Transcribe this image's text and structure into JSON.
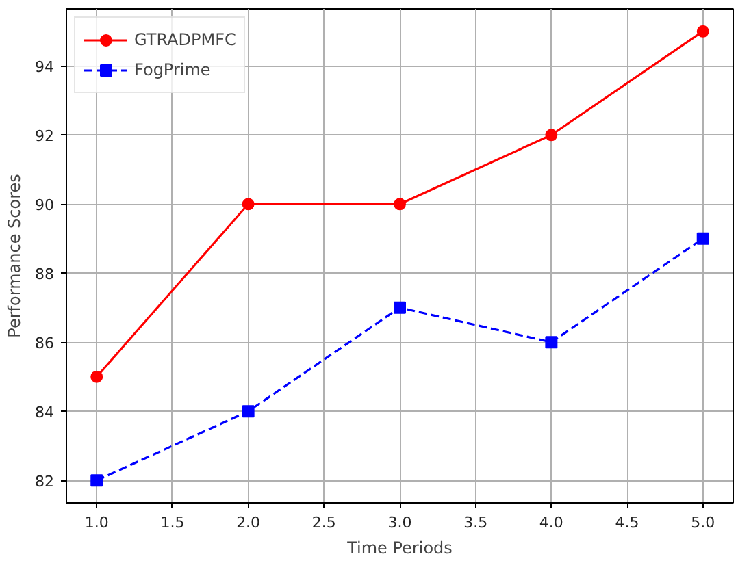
{
  "chart_data": {
    "type": "line",
    "xlabel": "Time Periods",
    "ylabel": "Performance Scores",
    "x": [
      1,
      2,
      3,
      4,
      5
    ],
    "series": [
      {
        "name": "GTRADPMFC",
        "color": "#ff0000",
        "values": [
          85,
          90,
          90,
          92,
          95
        ],
        "marker": "circle",
        "line_style": "solid"
      },
      {
        "name": "FogPrime",
        "color": "#0000ff",
        "values": [
          82,
          84,
          87,
          86,
          89
        ],
        "marker": "square",
        "line_style": "dashed"
      }
    ],
    "xlim": [
      0.8,
      5.2
    ],
    "ylim": [
      81.35,
      95.65
    ],
    "xticks": [
      {
        "value": 1,
        "label": "1.0"
      },
      {
        "value": 1.5,
        "label": "1.5"
      },
      {
        "value": 2,
        "label": "2.0"
      },
      {
        "value": 2.5,
        "label": "2.5"
      },
      {
        "value": 3,
        "label": "3.0"
      },
      {
        "value": 3.5,
        "label": "3.5"
      },
      {
        "value": 4,
        "label": "4.0"
      },
      {
        "value": 4.5,
        "label": "4.5"
      },
      {
        "value": 5,
        "label": "5.0"
      }
    ],
    "yticks": [
      82,
      84,
      86,
      88,
      90,
      92,
      94
    ],
    "grid": true,
    "legend": "top left"
  }
}
